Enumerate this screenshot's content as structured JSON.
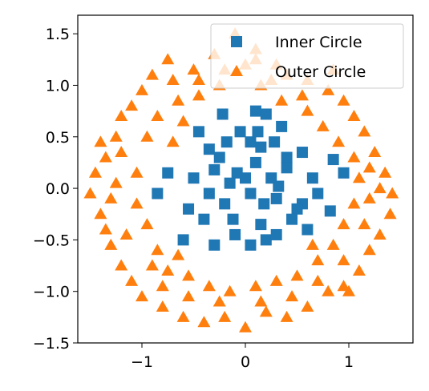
{
  "chart_data": {
    "type": "scatter",
    "title": "",
    "xlabel": "",
    "ylabel": "",
    "xlim": [
      -1.62,
      1.62
    ],
    "ylim": [
      -1.5,
      1.68
    ],
    "xticks": [
      -1,
      0,
      1
    ],
    "xtick_labels": [
      "−1",
      "0",
      "1"
    ],
    "yticks": [
      -1.5,
      -1.0,
      -0.5,
      0.0,
      0.5,
      1.0,
      1.5
    ],
    "ytick_labels": [
      "−1.5",
      "−1.0",
      "−0.5",
      "0.0",
      "0.5",
      "1.0",
      "1.5"
    ],
    "grid": false,
    "legend_position": "top-right",
    "series": [
      {
        "name": "Inner Circle",
        "marker": "square",
        "color": "#1f77b4",
        "points": [
          [
            -0.22,
            0.72
          ],
          [
            0.1,
            0.75
          ],
          [
            0.2,
            0.72
          ],
          [
            0.35,
            0.6
          ],
          [
            -0.45,
            0.55
          ],
          [
            -0.35,
            0.38
          ],
          [
            -0.3,
            0.18
          ],
          [
            -0.75,
            0.15
          ],
          [
            -0.5,
            0.1
          ],
          [
            -0.85,
            -0.05
          ],
          [
            0.85,
            0.28
          ],
          [
            0.95,
            0.15
          ],
          [
            0.65,
            0.1
          ],
          [
            0.55,
            0.35
          ],
          [
            0.4,
            0.3
          ],
          [
            0.7,
            -0.05
          ],
          [
            0.55,
            -0.15
          ],
          [
            0.5,
            -0.2
          ],
          [
            0.82,
            -0.22
          ],
          [
            0.6,
            -0.4
          ],
          [
            -0.55,
            -0.2
          ],
          [
            -0.4,
            -0.3
          ],
          [
            -0.6,
            -0.5
          ],
          [
            -0.3,
            -0.55
          ],
          [
            -0.1,
            -0.45
          ],
          [
            0.05,
            -0.55
          ],
          [
            0.2,
            -0.5
          ],
          [
            0.3,
            -0.45
          ],
          [
            -0.05,
            0.55
          ],
          [
            0.25,
            0.1
          ],
          [
            0.05,
            0.45
          ],
          [
            0.15,
            0.4
          ],
          [
            0.28,
            0.45
          ],
          [
            0.4,
            0.2
          ],
          [
            0.3,
            -0.1
          ],
          [
            -0.15,
            0.05
          ],
          [
            -0.08,
            0.15
          ],
          [
            0.05,
            -0.05
          ],
          [
            0.0,
            0.1
          ],
          [
            0.18,
            -0.15
          ],
          [
            -0.2,
            -0.15
          ],
          [
            -0.25,
            0.3
          ],
          [
            0.1,
            0.25
          ],
          [
            -0.12,
            -0.3
          ],
          [
            0.15,
            -0.35
          ],
          [
            0.12,
            0.55
          ],
          [
            -0.18,
            0.45
          ],
          [
            0.32,
            0.02
          ],
          [
            -0.35,
            -0.05
          ],
          [
            0.45,
            -0.3
          ]
        ]
      },
      {
        "name": "Outer Circle",
        "marker": "triangle",
        "color": "#ff7f0e",
        "points": [
          [
            -0.1,
            1.5
          ],
          [
            0.0,
            1.2
          ],
          [
            0.1,
            1.25
          ],
          [
            -0.3,
            1.3
          ],
          [
            -0.5,
            1.15
          ],
          [
            -0.7,
            1.05
          ],
          [
            -0.9,
            1.1
          ],
          [
            -1.0,
            0.95
          ],
          [
            -1.1,
            0.8
          ],
          [
            -1.2,
            0.7
          ],
          [
            -1.25,
            0.5
          ],
          [
            -1.35,
            0.3
          ],
          [
            -1.45,
            0.15
          ],
          [
            -1.5,
            -0.05
          ],
          [
            -1.4,
            -0.25
          ],
          [
            -1.35,
            -0.4
          ],
          [
            -1.3,
            -0.55
          ],
          [
            -1.2,
            -0.75
          ],
          [
            -1.1,
            -0.9
          ],
          [
            -1.0,
            -1.05
          ],
          [
            -0.8,
            -1.15
          ],
          [
            -0.6,
            -1.25
          ],
          [
            -0.4,
            -1.3
          ],
          [
            -0.2,
            -1.25
          ],
          [
            0.0,
            -1.35
          ],
          [
            0.2,
            -1.2
          ],
          [
            0.4,
            -1.25
          ],
          [
            0.6,
            -1.15
          ],
          [
            0.8,
            -1.0
          ],
          [
            0.95,
            -0.95
          ],
          [
            1.1,
            -0.8
          ],
          [
            1.2,
            -0.6
          ],
          [
            1.3,
            -0.45
          ],
          [
            1.4,
            -0.25
          ],
          [
            1.42,
            -0.05
          ],
          [
            1.35,
            0.15
          ],
          [
            1.25,
            0.35
          ],
          [
            1.15,
            0.55
          ],
          [
            1.05,
            0.7
          ],
          [
            0.95,
            0.85
          ],
          [
            0.8,
            0.95
          ],
          [
            0.6,
            1.05
          ],
          [
            0.4,
            1.1
          ],
          [
            0.3,
            1.2
          ],
          [
            -1.2,
            0.35
          ],
          [
            -1.05,
            0.15
          ],
          [
            -1.05,
            -0.15
          ],
          [
            -0.95,
            -0.35
          ],
          [
            -0.85,
            -0.6
          ],
          [
            -0.75,
            -0.8
          ],
          [
            -0.55,
            -0.85
          ],
          [
            -0.35,
            -0.95
          ],
          [
            -0.15,
            -1.0
          ],
          [
            0.1,
            -0.95
          ],
          [
            0.3,
            -0.9
          ],
          [
            0.5,
            -0.85
          ],
          [
            0.7,
            -0.7
          ],
          [
            0.85,
            -0.55
          ],
          [
            0.95,
            -0.35
          ],
          [
            1.05,
            -0.15
          ],
          [
            1.1,
            0.1
          ],
          [
            1.05,
            0.3
          ],
          [
            0.9,
            0.45
          ],
          [
            0.75,
            0.6
          ],
          [
            0.6,
            0.75
          ],
          [
            -0.65,
            0.85
          ],
          [
            -0.85,
            0.7
          ],
          [
            -0.95,
            0.5
          ],
          [
            -0.7,
            0.45
          ],
          [
            -0.6,
            0.65
          ],
          [
            -0.45,
            0.9
          ],
          [
            -0.25,
            1.0
          ],
          [
            0.15,
            1.0
          ],
          [
            0.35,
            0.85
          ],
          [
            0.55,
            0.9
          ],
          [
            -0.8,
            -0.95
          ],
          [
            -0.55,
            -1.05
          ],
          [
            -0.25,
            -1.1
          ],
          [
            0.15,
            -1.1
          ],
          [
            0.45,
            -1.05
          ],
          [
            0.7,
            -0.9
          ],
          [
            0.95,
            -0.7
          ],
          [
            1.15,
            -0.35
          ],
          [
            1.2,
            -0.1
          ],
          [
            1.2,
            0.2
          ],
          [
            -1.3,
            -0.1
          ],
          [
            -1.15,
            -0.45
          ],
          [
            -0.9,
            -0.75
          ],
          [
            -0.65,
            -0.65
          ],
          [
            -1.25,
            0.05
          ],
          [
            0.1,
            1.35
          ],
          [
            -0.2,
            1.15
          ],
          [
            0.25,
            1.05
          ],
          [
            -0.45,
            1.05
          ],
          [
            0.65,
            -0.55
          ],
          [
            -1.4,
            0.45
          ],
          [
            1.3,
            0.0
          ],
          [
            -0.75,
            1.25
          ],
          [
            0.85,
            1.15
          ],
          [
            1.0,
            -1.0
          ]
        ]
      }
    ]
  }
}
